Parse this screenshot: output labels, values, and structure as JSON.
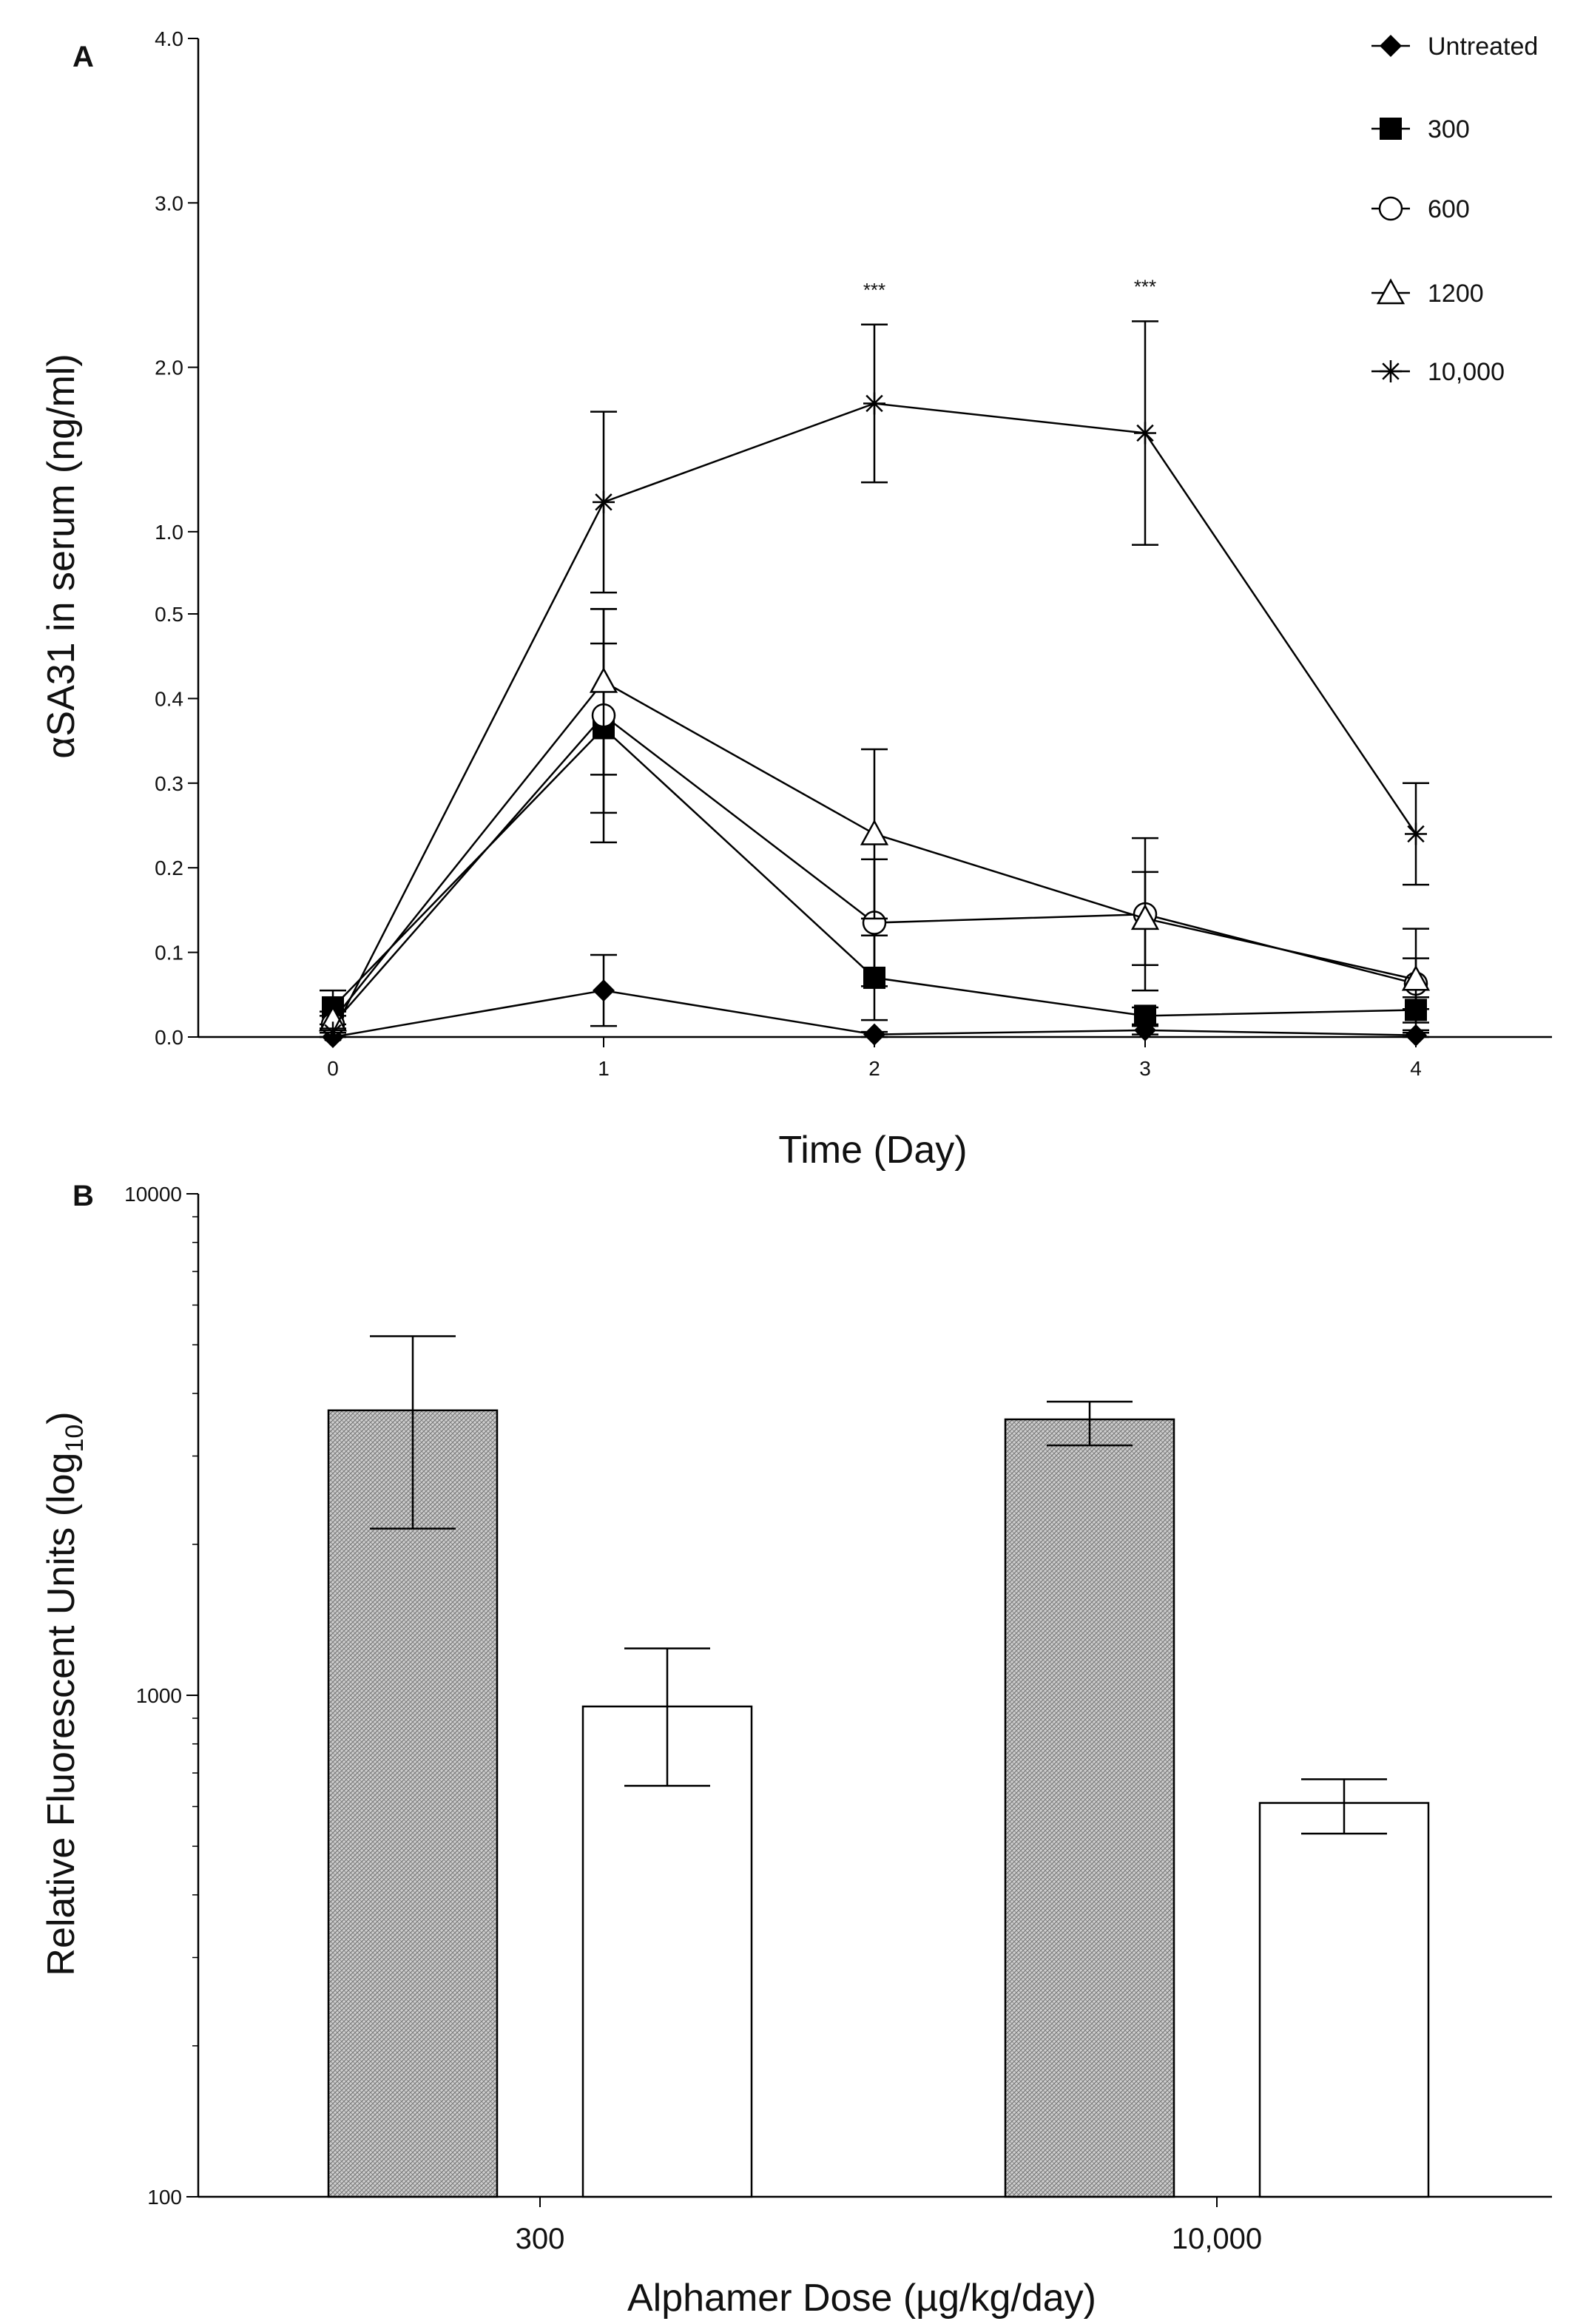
{
  "chart_data": [
    {
      "type": "line",
      "panel_label": "A",
      "title": "",
      "xlabel": "Time (Day)",
      "ylabel": "αSA31 in serum (ng/ml)",
      "x": [
        0,
        1,
        2,
        3,
        4
      ],
      "x_ticks": [
        "0",
        "1",
        "2",
        "3",
        "4"
      ],
      "y_ticks": [
        "0.0",
        "0.1",
        "0.2",
        "0.3",
        "0.4",
        "0.5",
        "1.0",
        "2.0",
        "3.0",
        "4.0"
      ],
      "ylim": [
        0,
        4
      ],
      "y_scale_note": "segmented axis: 0.0–0.5 linear lower segment, 0.5–4.0 compressed upper segment",
      "legend_position": "top-right",
      "grid": false,
      "series": [
        {
          "name": "Untreated",
          "marker": "diamond-filled",
          "values": [
            0.0,
            0.055,
            0.003,
            0.008,
            0.002
          ],
          "errors": [
            0.005,
            0.042,
            0.003,
            0.005,
            0.003
          ]
        },
        {
          "name": "300",
          "marker": "square-filled",
          "values": [
            0.035,
            0.365,
            0.07,
            0.025,
            0.032
          ],
          "errors": [
            0.02,
            0.1,
            0.05,
            0.01,
            0.015
          ]
        },
        {
          "name": "600",
          "marker": "circle-open",
          "values": [
            0.015,
            0.38,
            0.135,
            0.145,
            0.063
          ],
          "errors": [
            0.01,
            0.15,
            0.075,
            0.09,
            0.03
          ]
        },
        {
          "name": "1200",
          "marker": "triangle-open",
          "values": [
            0.02,
            0.42,
            0.24,
            0.14,
            0.068
          ],
          "errors": [
            0.01,
            0.11,
            0.1,
            0.055,
            0.06
          ]
        },
        {
          "name": "10,000",
          "marker": "asterisk",
          "values": [
            0.005,
            1.18,
            1.78,
            1.6,
            0.24
          ],
          "errors": [
            0.005,
            0.55,
            0.48,
            0.68,
            0.06
          ]
        }
      ],
      "annotations": [
        {
          "x": 2,
          "text": "***"
        },
        {
          "x": 3,
          "text": "***"
        }
      ]
    },
    {
      "type": "bar",
      "panel_label": "B",
      "title": "",
      "xlabel": "Alphamer Dose (µg/kg/day)",
      "ylabel": "Relative Fluorescent Units (log",
      "ylabel_subscript": "10",
      "ylabel_suffix": ")",
      "y_scale": "log",
      "ylim": [
        100,
        10000
      ],
      "y_ticks": [
        "100",
        "1000",
        "10000"
      ],
      "categories": [
        "300",
        "10,000"
      ],
      "grid": false,
      "series": [
        {
          "name": "shaded",
          "fill": "#c9c9c9",
          "pattern": "fine-crosshatch",
          "values": [
            3700,
            3550
          ],
          "err_low": [
            2150,
            3150
          ],
          "err_high": [
            5200,
            3850
          ]
        },
        {
          "name": "open",
          "fill": "#ffffff",
          "values": [
            950,
            610
          ],
          "err_low": [
            660,
            530
          ],
          "err_high": [
            1240,
            680
          ]
        }
      ]
    }
  ]
}
